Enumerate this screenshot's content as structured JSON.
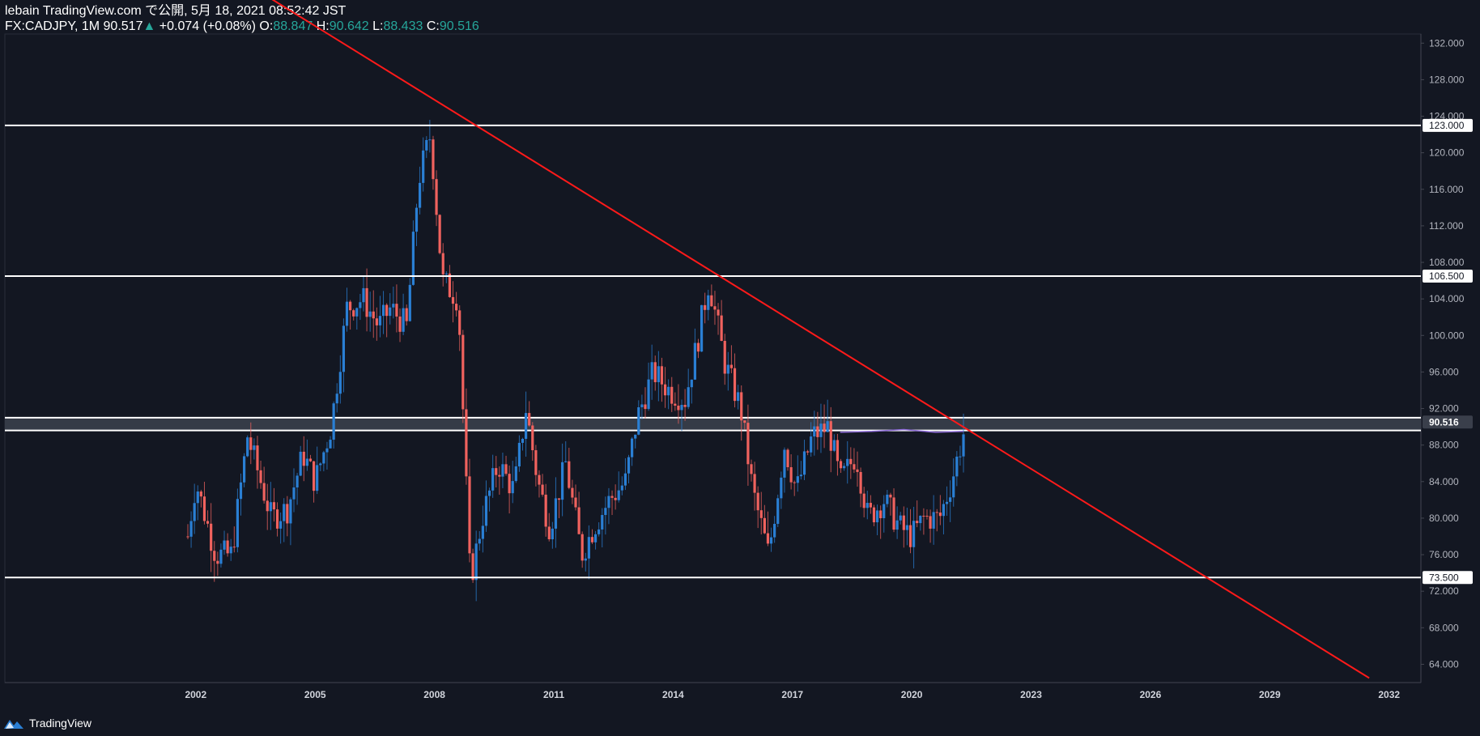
{
  "header": {
    "line1": "lebain TradingView.com で公開, 5月 18, 2021 08:52:42 JST",
    "symbol": "FX:CADJPY, 1M",
    "last": "90.517",
    "arrow": "▲",
    "change": "+0.074 (+0.08%)",
    "o_label": "O:",
    "o_value": "88.847",
    "h_label": "H:",
    "h_value": "90.642",
    "l_label": "L:",
    "l_value": "88.433",
    "c_label": "C:",
    "c_value": "90.516"
  },
  "footer": {
    "brand": "TradingView"
  },
  "colors": {
    "background": "#131722",
    "up": "#2a7fd4",
    "down": "#f0625e",
    "trendline": "#ff1a1a",
    "level": "#ffffff",
    "zone": "#3a3f4b",
    "ma": "#8e6cd8"
  },
  "chart_data": {
    "type": "candlestick",
    "symbol": "FX:CADJPY",
    "interval": "1M",
    "ylim": [
      62,
      133
    ],
    "xlim": [
      1997.2,
      2032.8
    ],
    "y_ticks": [
      "64.000",
      "68.000",
      "72.000",
      "76.000",
      "80.000",
      "84.000",
      "88.000",
      "92.000",
      "96.000",
      "100.000",
      "104.000",
      "108.000",
      "112.000",
      "116.000",
      "120.000",
      "124.000",
      "128.000",
      "132.000"
    ],
    "x_ticks": [
      "2002",
      "2005",
      "2008",
      "2011",
      "2014",
      "2017",
      "2020",
      "2023",
      "2026",
      "2029",
      "2032"
    ],
    "horizontal_levels": [
      {
        "price": 123.0,
        "label": "123.000"
      },
      {
        "price": 106.5,
        "label": "106.500"
      },
      {
        "price": 73.5,
        "label": "73.500"
      }
    ],
    "zone": {
      "low": 89.6,
      "high": 91.0
    },
    "current_price": {
      "price": 90.516,
      "label": "90.516"
    },
    "trendline": {
      "x1": 2000.5,
      "y1": 146.0,
      "x2": 2031.5,
      "y2": 62.5
    },
    "moving_average": {
      "x": [
        2018.2,
        2019.0,
        2019.8,
        2020.6,
        2021.3
      ],
      "y": [
        89.4,
        89.5,
        89.7,
        89.4,
        89.5
      ]
    },
    "candles_anchor": {
      "x": [
        2001.8,
        2002.0,
        2002.5,
        2002.9,
        2003.3,
        2003.9,
        2004.3,
        2004.7,
        2005.0,
        2005.4,
        2005.8,
        2006.2,
        2006.6,
        2006.9,
        2007.3,
        2007.6,
        2007.9,
        2008.2,
        2008.6,
        2008.9,
        2009.2,
        2009.6,
        2010.0,
        2010.3,
        2010.6,
        2010.9,
        2011.3,
        2011.7,
        2012.0,
        2012.4,
        2012.8,
        2013.1,
        2013.5,
        2013.9,
        2014.3,
        2014.6,
        2014.9,
        2015.3,
        2015.7,
        2016.0,
        2016.4,
        2016.8,
        2017.1,
        2017.5,
        2017.9,
        2018.2,
        2018.6,
        2018.9,
        2019.3,
        2019.7,
        2020.0,
        2020.3,
        2020.7,
        2021.0,
        2021.37
      ],
      "close": [
        78,
        84,
        76,
        76,
        89,
        80,
        81,
        87,
        84,
        90,
        103,
        104,
        101,
        103,
        101,
        117,
        122,
        106,
        104,
        73,
        80,
        86,
        83,
        92,
        84,
        79,
        86,
        76,
        79,
        82,
        84,
        91,
        96,
        94,
        93,
        99,
        106,
        97,
        92,
        83,
        76,
        88,
        83,
        89,
        90,
        84,
        87,
        80,
        82,
        79,
        78,
        80,
        80,
        84,
        90.5
      ]
    }
  }
}
